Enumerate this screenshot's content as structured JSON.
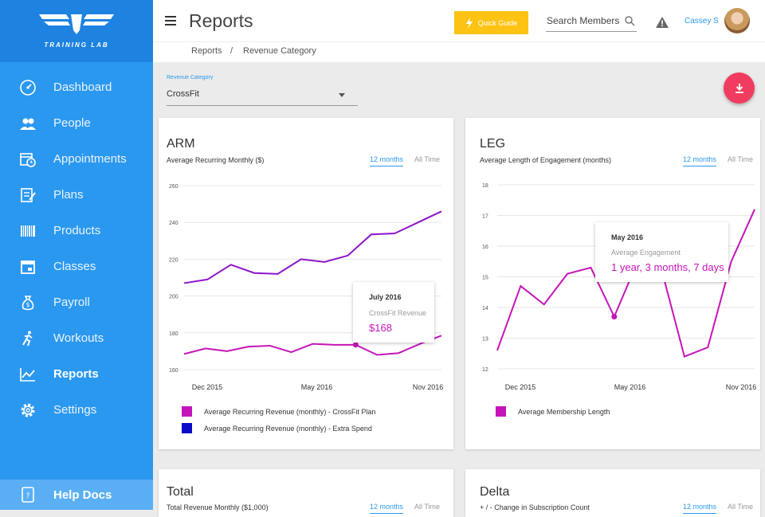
{
  "brand": {
    "name": "TRAINING LAB"
  },
  "sidebar": {
    "items": [
      {
        "label": "Dashboard",
        "icon": "dashboard-icon"
      },
      {
        "label": "People",
        "icon": "people-icon"
      },
      {
        "label": "Appointments",
        "icon": "appointments-icon"
      },
      {
        "label": "Plans",
        "icon": "plans-icon"
      },
      {
        "label": "Products",
        "icon": "barcode-icon"
      },
      {
        "label": "Classes",
        "icon": "calendar-icon"
      },
      {
        "label": "Payroll",
        "icon": "money-bag-icon"
      },
      {
        "label": "Workouts",
        "icon": "runner-icon"
      },
      {
        "label": "Reports",
        "icon": "chart-icon",
        "active": true
      },
      {
        "label": "Settings",
        "icon": "gear-icon"
      }
    ],
    "help": "Help Docs"
  },
  "header": {
    "title": "Reports",
    "quick_guide": "Quick Guide",
    "search_placeholder": "Search Members",
    "user_name": "Cassey S"
  },
  "breadcrumb": {
    "root": "Reports",
    "separator": "/",
    "current": "Revenue Category"
  },
  "filter": {
    "label": "Revenue Category",
    "value": "CrossFit"
  },
  "colors": {
    "accent": "#2b98f0",
    "magenta": "#c515b8",
    "purple": "#8d14c9",
    "navy": "#0b0bc7",
    "warning": "#fdc313",
    "download": "#f03c5e"
  },
  "cards": {
    "arm": {
      "title": "ARM",
      "subtitle": "Average Recurring Monthly ($)",
      "tab_active": "12 months",
      "tab_other": "All Time",
      "legend": [
        "Average Recurring Revenue (monthly) - CrossFit Plan",
        "Average Recurring Revenue (monthly) - Extra Spend"
      ],
      "tooltip": {
        "title": "July 2016",
        "label": "CrossFit Revenue",
        "value": "$168"
      }
    },
    "leg": {
      "title": "LEG",
      "subtitle": "Average Length of Engagement (months)",
      "tab_active": "12 months",
      "tab_other": "All Time",
      "legend": [
        "Average Membership Length"
      ],
      "tooltip": {
        "title": "May 2016",
        "label": "Average Engagement",
        "value": "1 year, 3 months, 7 days"
      }
    },
    "total": {
      "title": "Total",
      "subtitle": "Total Revenue Monthly ($1,000)",
      "tab_active": "12 months",
      "tab_other": "All Time"
    },
    "delta": {
      "title": "Delta",
      "subtitle": "+ / - Change in Subscription Count",
      "tab_active": "12 months",
      "tab_other": "All Time"
    }
  },
  "chart_data": [
    {
      "type": "line",
      "title": "ARM",
      "ylabel": "Average Recurring Monthly ($)",
      "ylim": [
        160,
        260
      ],
      "yticks": [
        "260",
        "240",
        "220",
        "200",
        "180",
        "160"
      ],
      "xtick_labels": [
        "Dec 2015",
        "May 2016",
        "Nov 2016"
      ],
      "x_count": 15,
      "series": [
        {
          "name": "Average Recurring Revenue (monthly) - Extra Spend",
          "color": "#8d14c9",
          "values": [
            207,
            209,
            217,
            212.5,
            212,
            220,
            218.5,
            222,
            233.5,
            234,
            240,
            246
          ]
        },
        {
          "name": "Average Recurring Revenue (monthly) - CrossFit Plan",
          "color": "#c515b8",
          "values": [
            168.5,
            171.5,
            170,
            172.5,
            173,
            169.5,
            174,
            173.5,
            173.5,
            168,
            169,
            174,
            178.5
          ],
          "marker_index": 8
        }
      ]
    },
    {
      "type": "line",
      "title": "LEG",
      "ylabel": "Average Length of Engagement (months)",
      "ylim": [
        12,
        18
      ],
      "yticks": [
        "18",
        "17",
        "16",
        "15",
        "14",
        "13",
        "12"
      ],
      "xtick_labels": [
        "Dec 2015",
        "May 2016",
        "Nov 2016"
      ],
      "x_count": 15,
      "series": [
        {
          "name": "Average Membership Length",
          "color": "#c515b8",
          "values": [
            12.6,
            14.7,
            14.1,
            15.1,
            15.3,
            13.7,
            15.5,
            15.3,
            12.4,
            12.7,
            15.5,
            17.2
          ],
          "marker_index": 5
        }
      ]
    }
  ]
}
